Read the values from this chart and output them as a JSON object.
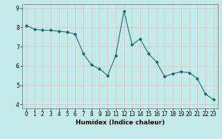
{
  "x": [
    0,
    1,
    2,
    3,
    4,
    5,
    6,
    7,
    8,
    9,
    10,
    11,
    12,
    13,
    14,
    15,
    16,
    17,
    18,
    19,
    20,
    21,
    22,
    23
  ],
  "y": [
    8.1,
    7.9,
    7.85,
    7.85,
    7.8,
    7.75,
    7.65,
    6.65,
    6.05,
    5.85,
    5.5,
    6.55,
    8.85,
    7.1,
    7.4,
    6.65,
    6.2,
    5.45,
    5.6,
    5.7,
    5.65,
    5.35,
    4.55,
    4.25
  ],
  "xlabel": "Humidex (Indice chaleur)",
  "ylim": [
    3.8,
    9.2
  ],
  "xlim": [
    -0.5,
    23.5
  ],
  "yticks": [
    4,
    5,
    6,
    7,
    8,
    9
  ],
  "xticks": [
    0,
    1,
    2,
    3,
    4,
    5,
    6,
    7,
    8,
    9,
    10,
    11,
    12,
    13,
    14,
    15,
    16,
    17,
    18,
    19,
    20,
    21,
    22,
    23
  ],
  "bg_color": "#c5eaea",
  "grid_color": "#ddbbbb",
  "line_color": "#1a6b6b",
  "marker": "D",
  "markersize": 1.8,
  "linewidth": 0.8,
  "xlabel_fontsize": 6.5,
  "tick_fontsize": 5.5
}
